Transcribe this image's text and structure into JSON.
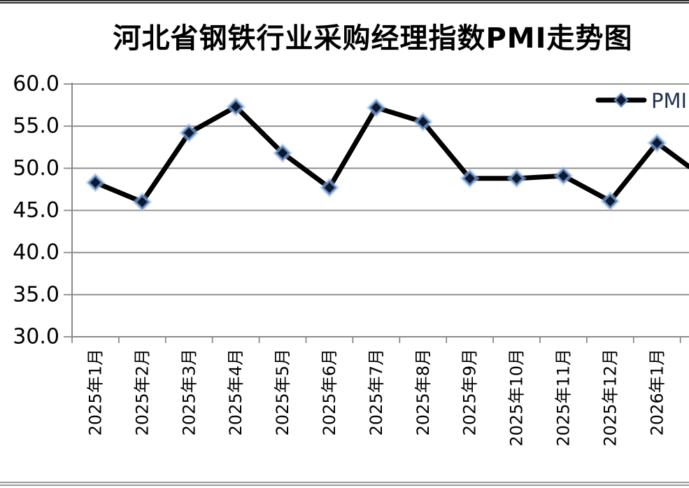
{
  "page": {
    "title": "河北省钢铁行业采购经理指数PMI走势图"
  },
  "legend": {
    "label": "PMI",
    "position": "top-right"
  },
  "y_axis": {
    "tick_labels": [
      "60.0",
      "55.0",
      "50.0",
      "45.0",
      "40.0",
      "35.0",
      "30.0"
    ]
  },
  "chart_data": {
    "type": "line",
    "title": "河北省钢铁行业采购经理指数PMI走势图",
    "categories": [
      "2025年1月",
      "2025年2月",
      "2025年3月",
      "2025年4月",
      "2025年5月",
      "2025年6月",
      "2025年7月",
      "2025年8月",
      "2025年9月",
      "2025年10月",
      "2025年11月",
      "2025年12月",
      "2026年1月"
    ],
    "series": [
      {
        "name": "PMI",
        "values": [
          48.3,
          46.0,
          54.2,
          57.3,
          51.8,
          47.7,
          57.2,
          55.5,
          48.8,
          48.8,
          49.1,
          46.1,
          53.0
        ]
      }
    ],
    "ylim": [
      30.0,
      60.0
    ],
    "y_tick_step": 5.0,
    "grid": "horizontal",
    "legend_position": "top-right",
    "marker": "diamond",
    "clipped_line_exit_value": 50.2
  },
  "colors": {
    "line": "#000000",
    "marker_fill": "#0b1830",
    "marker_edge": "#5d84b8",
    "marker_halo": "#9bb9e0",
    "grid": "#8a8a8a",
    "axis": "#8a8a8a",
    "text": "#000000",
    "legend_text": "#1f3050",
    "top_border": "#2c2c2c",
    "bottom_border": "#9b9b9b"
  }
}
